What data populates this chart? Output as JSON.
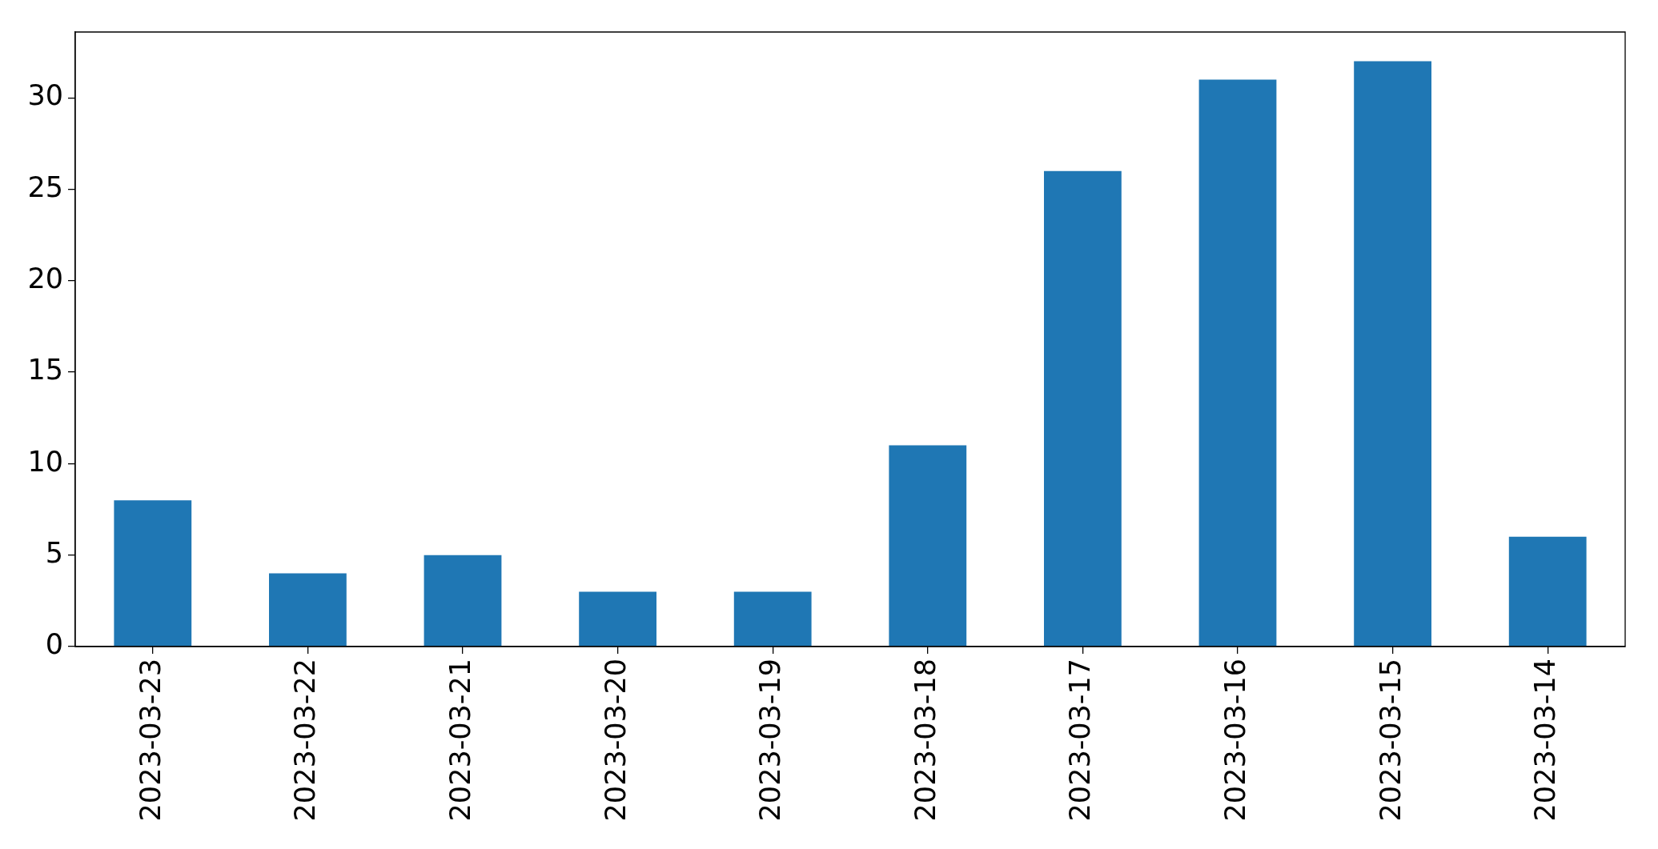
{
  "chart_data": {
    "type": "bar",
    "categories": [
      "2023-03-23",
      "2023-03-22",
      "2023-03-21",
      "2023-03-20",
      "2023-03-19",
      "2023-03-18",
      "2023-03-17",
      "2023-03-16",
      "2023-03-15",
      "2023-03-14"
    ],
    "values": [
      8,
      4,
      5,
      3,
      3,
      11,
      26,
      31,
      32,
      6
    ],
    "color": "#1f77b4",
    "ylim": [
      0,
      33.6
    ],
    "yticks": [
      0,
      5,
      10,
      15,
      20,
      25,
      30
    ],
    "grid": false
  }
}
